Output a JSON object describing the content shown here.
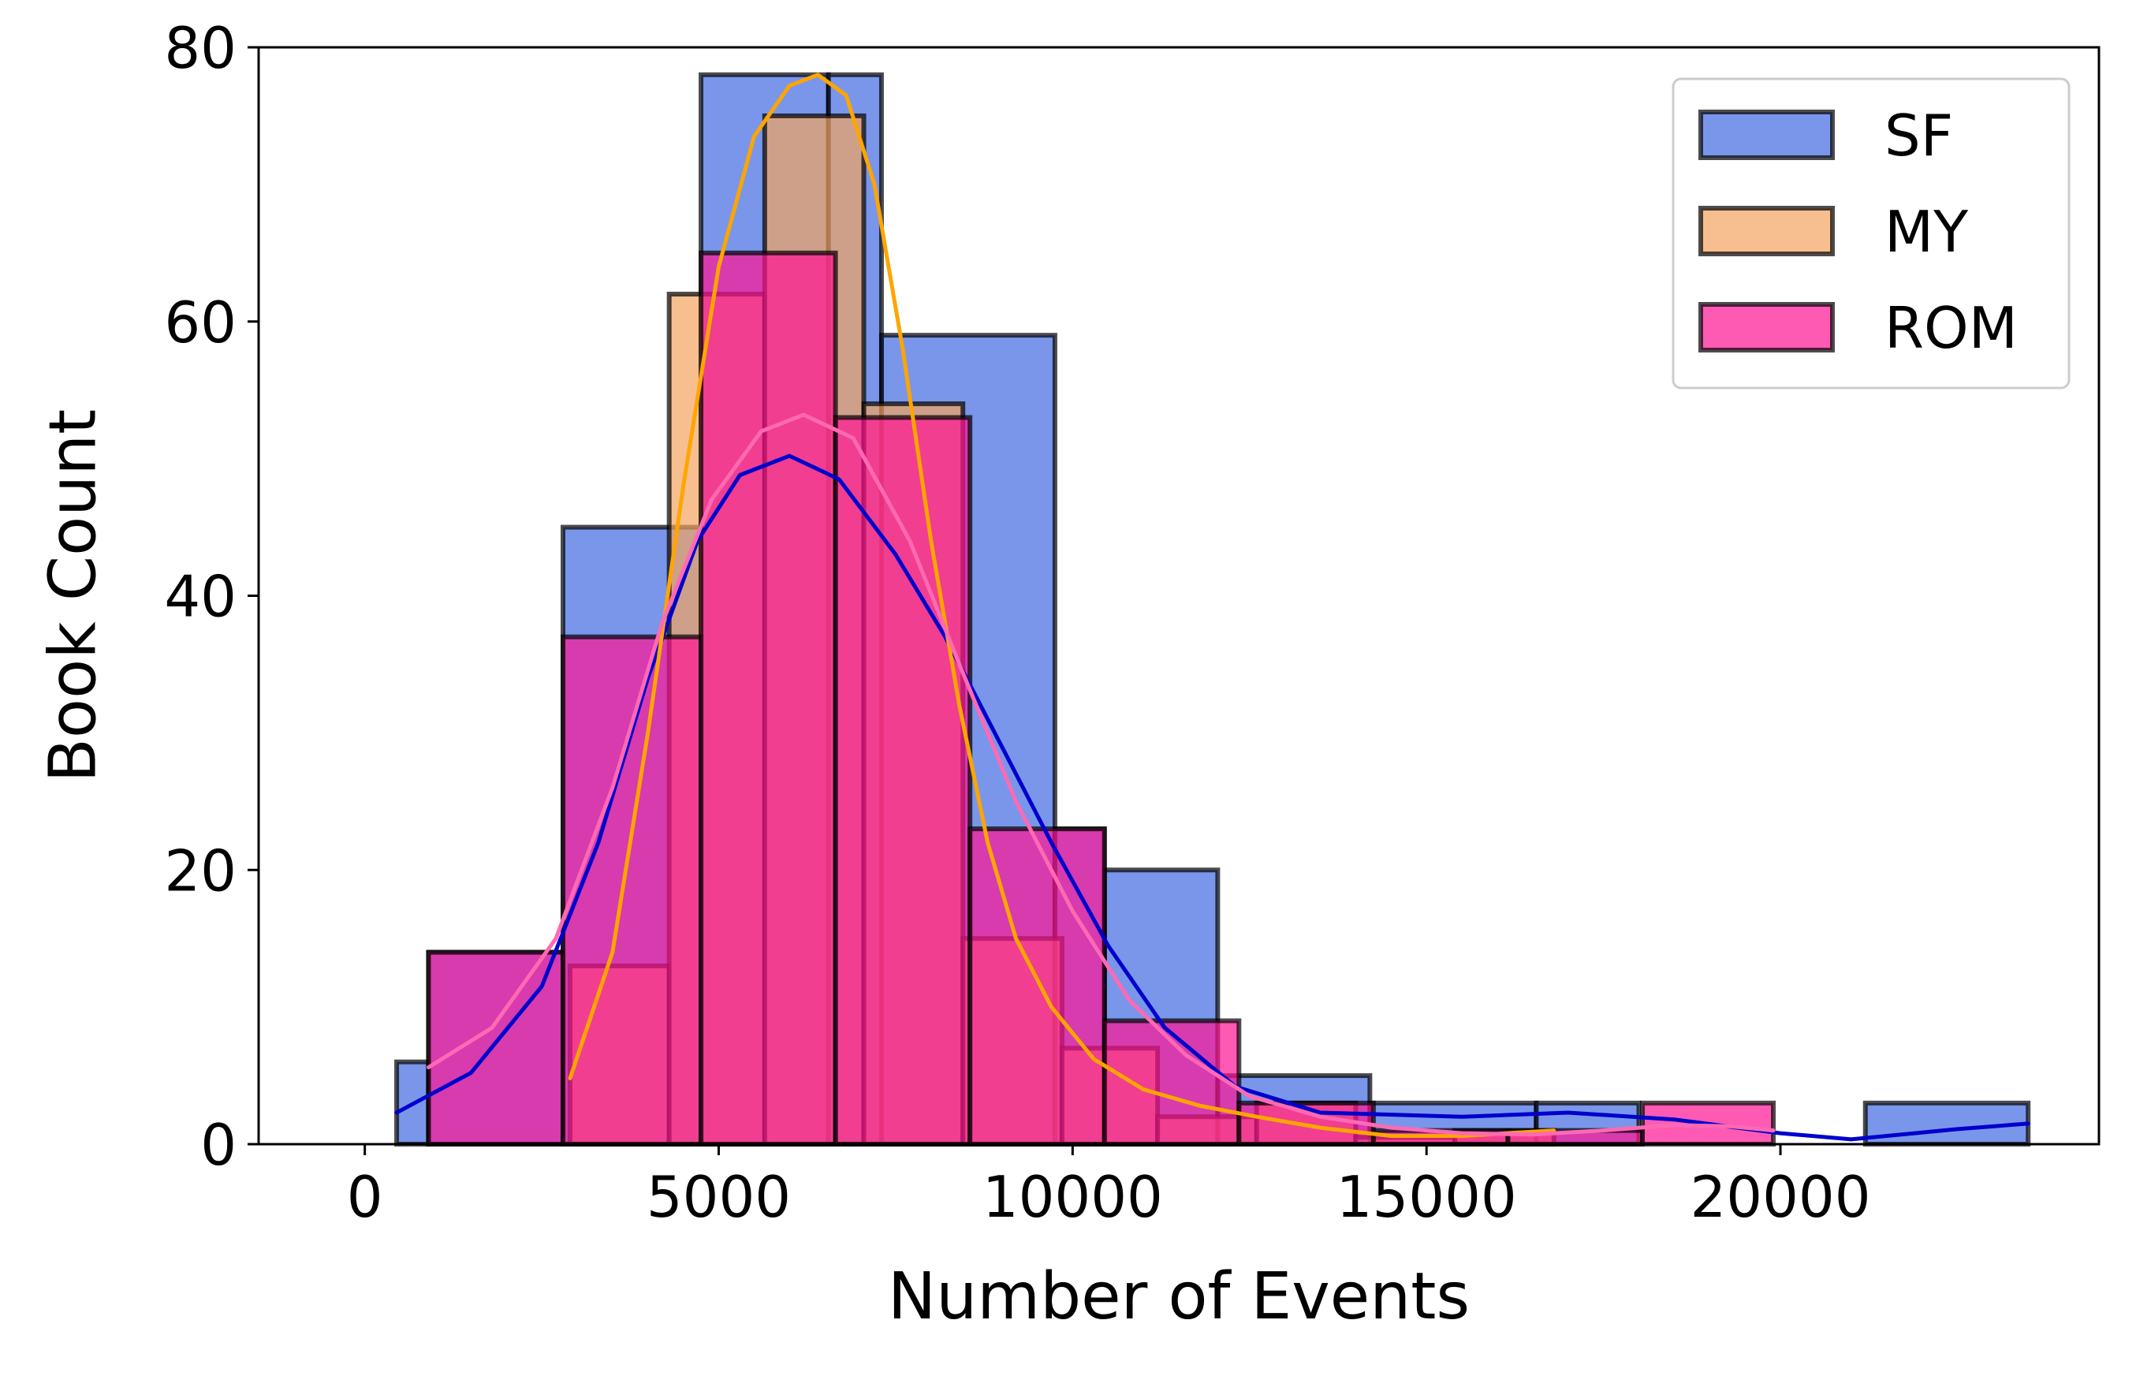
{
  "chart_data": {
    "type": "bar",
    "subtype": "overlapping-histogram-with-kde",
    "title": "",
    "xlabel": "Number of Events",
    "ylabel": "Book Count",
    "xlim": [
      -1500,
      24500
    ],
    "ylim": [
      0,
      80
    ],
    "xticks": [
      0,
      5000,
      10000,
      15000,
      20000
    ],
    "yticks": [
      0,
      20,
      40,
      60,
      80
    ],
    "xtick_labels": [
      "0",
      "5000",
      "10000",
      "15000",
      "20000"
    ],
    "ytick_labels": [
      "0",
      "20",
      "40",
      "60",
      "80"
    ],
    "grid": false,
    "legend_position": "top-right",
    "series": [
      {
        "name": "SF",
        "fill": "#4169e1",
        "kde_color": "#0000cd",
        "bins": [
          {
            "x0": 450,
            "x1": 900,
            "count": 6
          },
          {
            "x0": 900,
            "x1": 2800,
            "count": 14
          },
          {
            "x0": 2800,
            "x1": 4750,
            "count": 45
          },
          {
            "x0": 4750,
            "x1": 6550,
            "count": 78
          },
          {
            "x0": 6550,
            "x1": 7300,
            "count": 78
          },
          {
            "x0": 7300,
            "x1": 9750,
            "count": 59
          },
          {
            "x0": 9750,
            "x1": 10450,
            "count": 23
          },
          {
            "x0": 10450,
            "x1": 12050,
            "count": 20
          },
          {
            "x0": 12050,
            "x1": 14200,
            "count": 5
          },
          {
            "x0": 14200,
            "x1": 16550,
            "count": 3
          },
          {
            "x0": 16550,
            "x1": 18000,
            "count": 3
          },
          {
            "x0": 21200,
            "x1": 23500,
            "count": 3
          }
        ],
        "kde": [
          [
            450,
            2.3
          ],
          [
            1500,
            5.2
          ],
          [
            2500,
            11.5
          ],
          [
            3300,
            22
          ],
          [
            4000,
            34
          ],
          [
            4700,
            44
          ],
          [
            5300,
            48.8
          ],
          [
            6000,
            50.2
          ],
          [
            6700,
            48.5
          ],
          [
            7500,
            43
          ],
          [
            8200,
            37
          ],
          [
            9000,
            29
          ],
          [
            9700,
            22
          ],
          [
            10500,
            14.5
          ],
          [
            11300,
            8.5
          ],
          [
            12300,
            4.2
          ],
          [
            13500,
            2.3
          ],
          [
            15500,
            2.0
          ],
          [
            17000,
            2.3
          ],
          [
            18500,
            1.8
          ],
          [
            20000,
            0.8
          ],
          [
            21000,
            0.35
          ],
          [
            22500,
            1.1
          ],
          [
            23500,
            1.5
          ]
        ]
      },
      {
        "name": "MY",
        "fill": "#f4a460",
        "kde_color": "#ffa500",
        "bins": [
          {
            "x0": 2900,
            "x1": 4300,
            "count": 13
          },
          {
            "x0": 4300,
            "x1": 5650,
            "count": 62
          },
          {
            "x0": 5650,
            "x1": 7050,
            "count": 75
          },
          {
            "x0": 7050,
            "x1": 8450,
            "count": 54
          },
          {
            "x0": 8450,
            "x1": 9850,
            "count": 15
          },
          {
            "x0": 9850,
            "x1": 11200,
            "count": 7
          },
          {
            "x0": 11200,
            "x1": 12600,
            "count": 2
          },
          {
            "x0": 12600,
            "x1": 14000,
            "count": 3
          },
          {
            "x0": 14000,
            "x1": 15400,
            "count": 0.5
          },
          {
            "x0": 15400,
            "x1": 16800,
            "count": 1
          }
        ],
        "kde": [
          [
            2900,
            4.8
          ],
          [
            3500,
            14
          ],
          [
            4000,
            30
          ],
          [
            4500,
            48
          ],
          [
            5000,
            64
          ],
          [
            5500,
            73.5
          ],
          [
            6000,
            77.2
          ],
          [
            6400,
            78
          ],
          [
            6800,
            76.5
          ],
          [
            7200,
            70
          ],
          [
            7600,
            58
          ],
          [
            8000,
            44
          ],
          [
            8400,
            32
          ],
          [
            8800,
            22
          ],
          [
            9200,
            15
          ],
          [
            9700,
            10
          ],
          [
            10300,
            6.2
          ],
          [
            11000,
            4.0
          ],
          [
            11800,
            2.8
          ],
          [
            12600,
            2.0
          ],
          [
            13500,
            1.2
          ],
          [
            14500,
            0.6
          ],
          [
            15500,
            0.6
          ],
          [
            16800,
            1.0
          ]
        ]
      },
      {
        "name": "ROM",
        "fill": "#ff1493",
        "kde_color": "#ff69b4",
        "bins": [
          {
            "x0": 900,
            "x1": 2800,
            "count": 14
          },
          {
            "x0": 2800,
            "x1": 4750,
            "count": 37
          },
          {
            "x0": 4750,
            "x1": 6650,
            "count": 65
          },
          {
            "x0": 6650,
            "x1": 8550,
            "count": 53
          },
          {
            "x0": 8550,
            "x1": 10450,
            "count": 23
          },
          {
            "x0": 10450,
            "x1": 12350,
            "count": 9
          },
          {
            "x0": 12350,
            "x1": 14250,
            "count": 3
          },
          {
            "x0": 14250,
            "x1": 16150,
            "count": 1
          },
          {
            "x0": 16150,
            "x1": 18050,
            "count": 1
          },
          {
            "x0": 18050,
            "x1": 19900,
            "count": 3
          }
        ],
        "kde": [
          [
            900,
            5.6
          ],
          [
            1800,
            8.5
          ],
          [
            2700,
            15
          ],
          [
            3500,
            26
          ],
          [
            4200,
            38
          ],
          [
            4900,
            47
          ],
          [
            5600,
            52
          ],
          [
            6200,
            53.2
          ],
          [
            6900,
            51.5
          ],
          [
            7700,
            44
          ],
          [
            8400,
            35
          ],
          [
            9200,
            25
          ],
          [
            10000,
            17
          ],
          [
            10800,
            10.5
          ],
          [
            11600,
            6.5
          ],
          [
            12500,
            3.5
          ],
          [
            13500,
            2.0
          ],
          [
            14500,
            1.2
          ],
          [
            15500,
            0.8
          ],
          [
            16500,
            0.7
          ],
          [
            17500,
            1.0
          ],
          [
            18500,
            1.4
          ],
          [
            19300,
            1.3
          ],
          [
            19900,
            1.0
          ]
        ]
      }
    ]
  }
}
